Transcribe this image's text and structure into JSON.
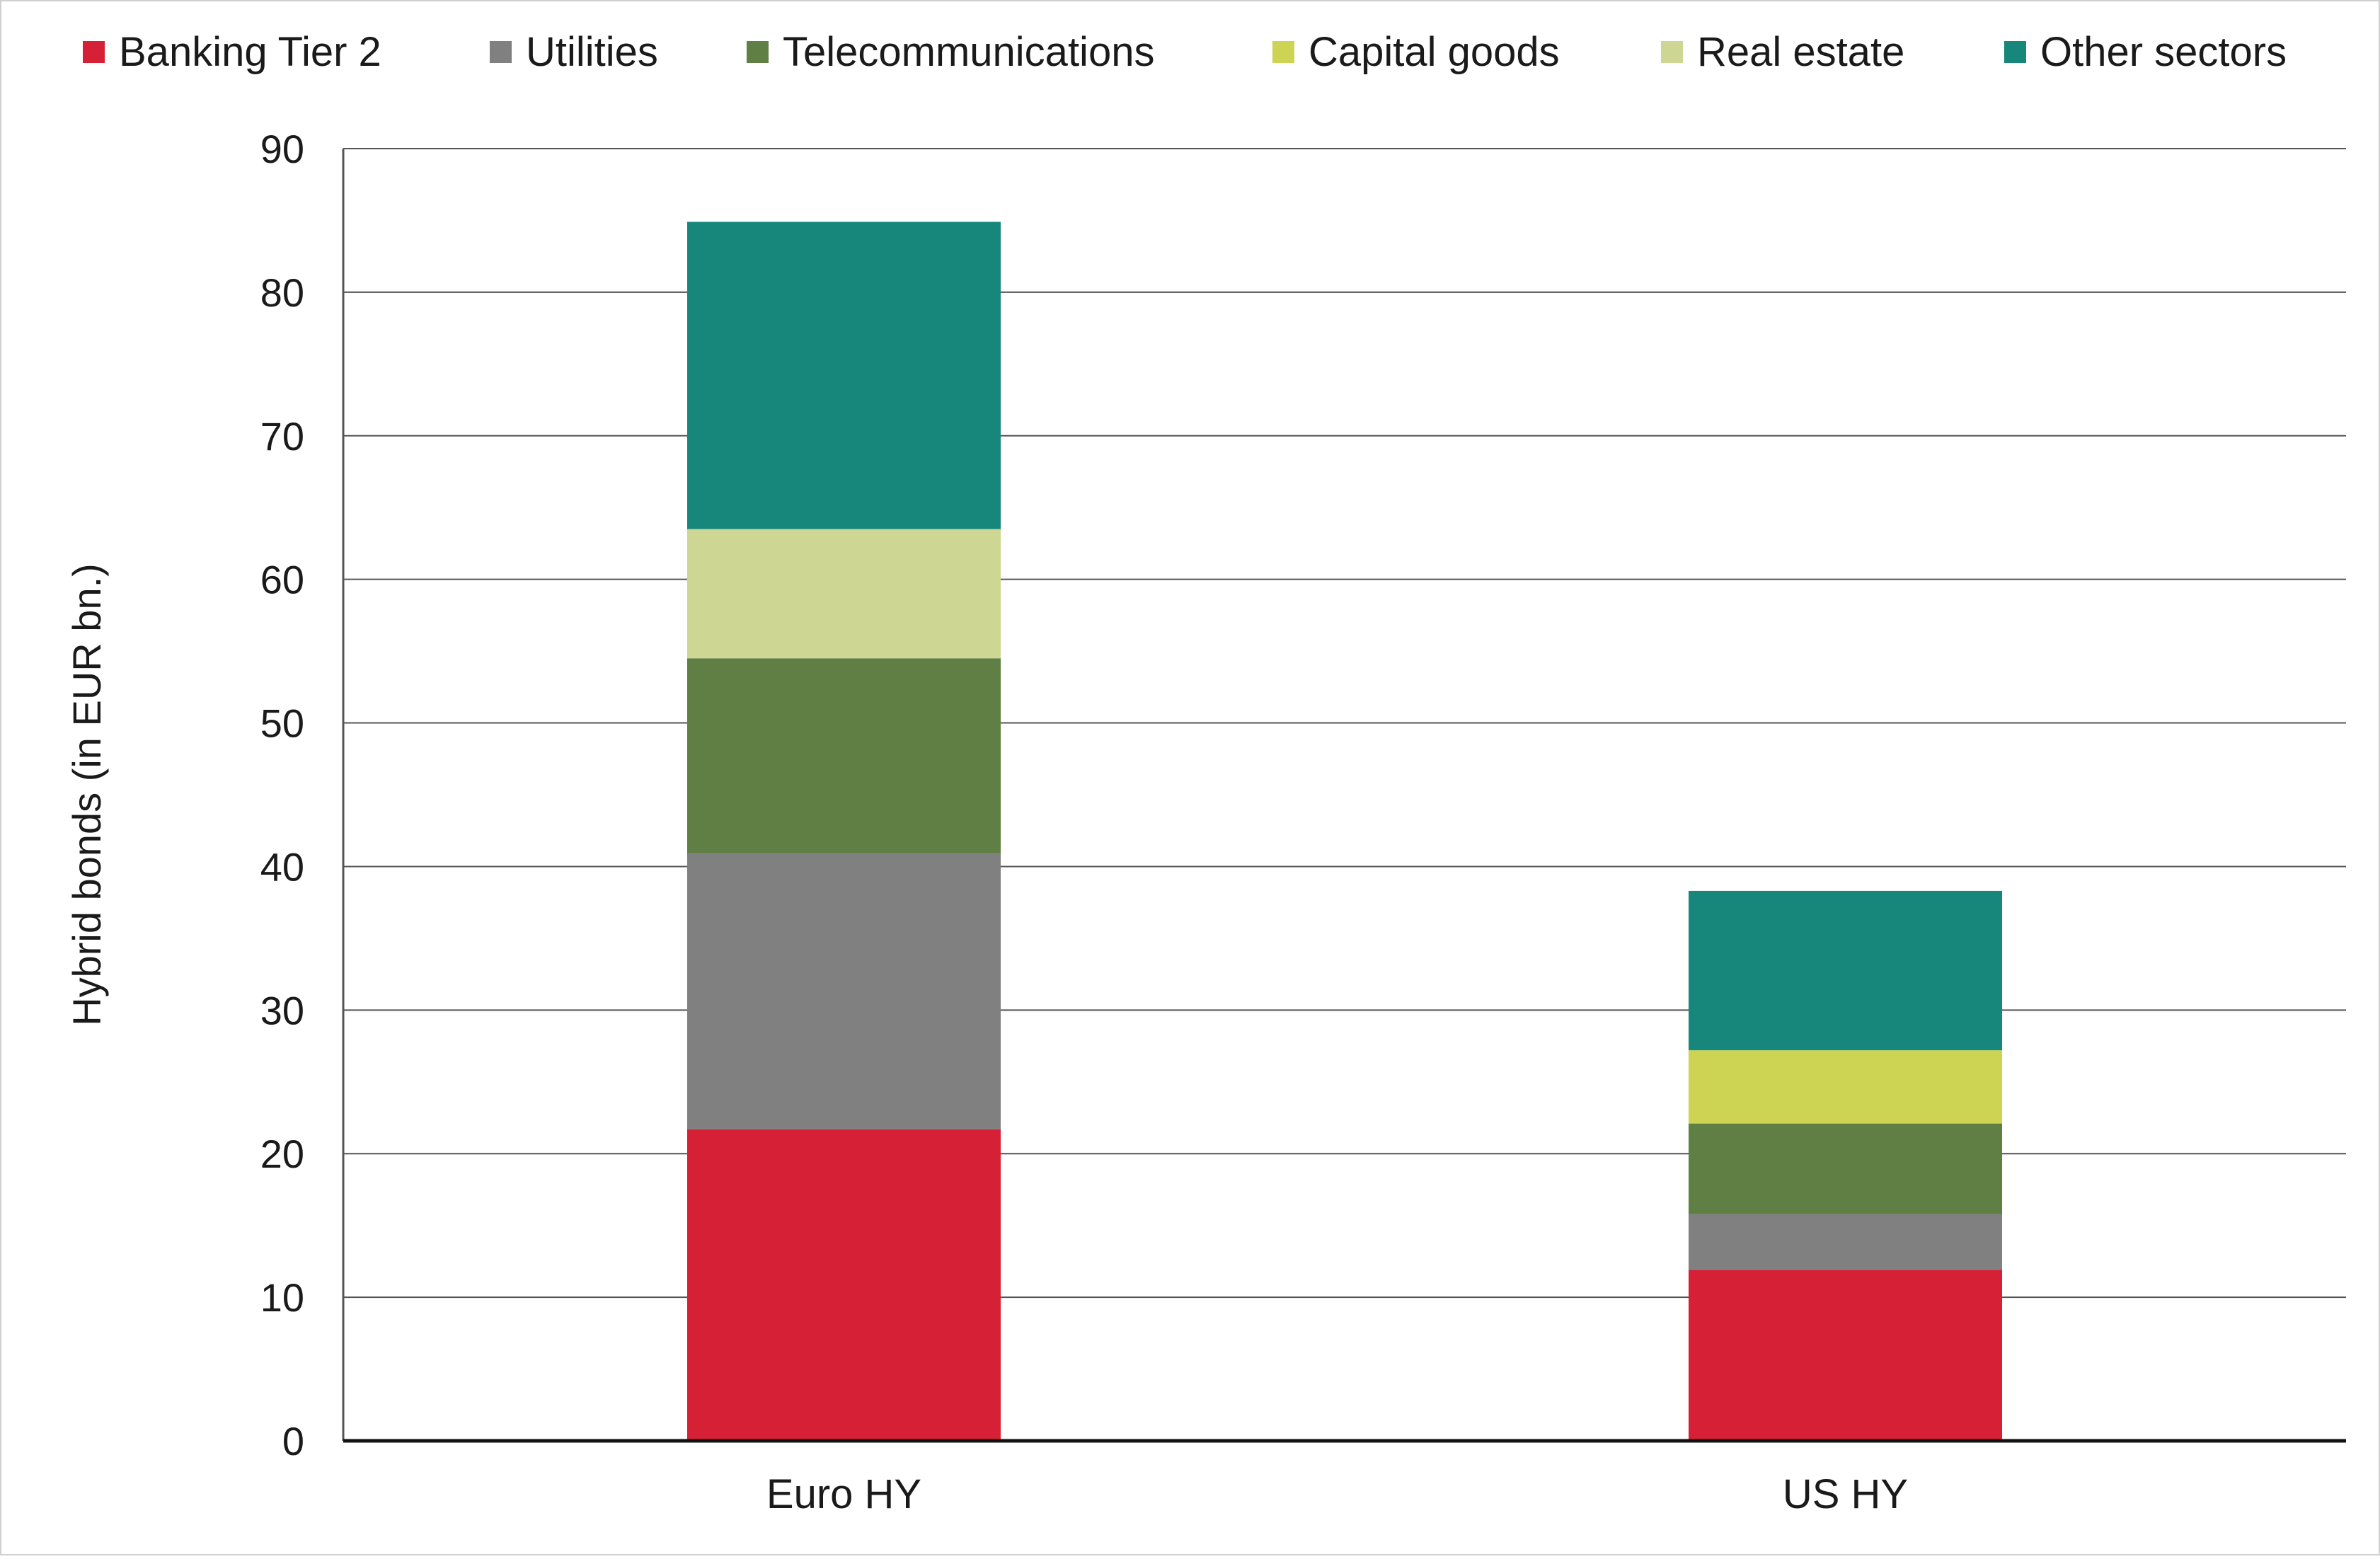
{
  "chart_data": {
    "type": "bar",
    "stacked": true,
    "categories": [
      "Euro HY",
      "US HY"
    ],
    "series": [
      {
        "name": "Banking Tier 2",
        "color": "#d62035",
        "values": [
          21.7,
          11.9
        ]
      },
      {
        "name": "Utilities",
        "color": "#808080",
        "values": [
          19.2,
          3.9
        ]
      },
      {
        "name": "Telecommunications",
        "color": "#5f7f44",
        "values": [
          13.6,
          6.3
        ]
      },
      {
        "name": "Capital goods",
        "color": "#cdd454",
        "values": [
          0,
          5.1
        ]
      },
      {
        "name": "Real estate",
        "color": "#ced693",
        "values": [
          9.0,
          0
        ]
      },
      {
        "name": "Other sectors",
        "color": "#17877b",
        "values": [
          21.4,
          11.1
        ]
      }
    ],
    "ylabel": "Hybrid bonds (in EUR bn.)",
    "xlabel": "",
    "ylim": [
      0,
      90
    ],
    "yticks": [
      0,
      10,
      20,
      30,
      40,
      50,
      60,
      70,
      80,
      90
    ],
    "grid": true,
    "legend_position": "top"
  }
}
